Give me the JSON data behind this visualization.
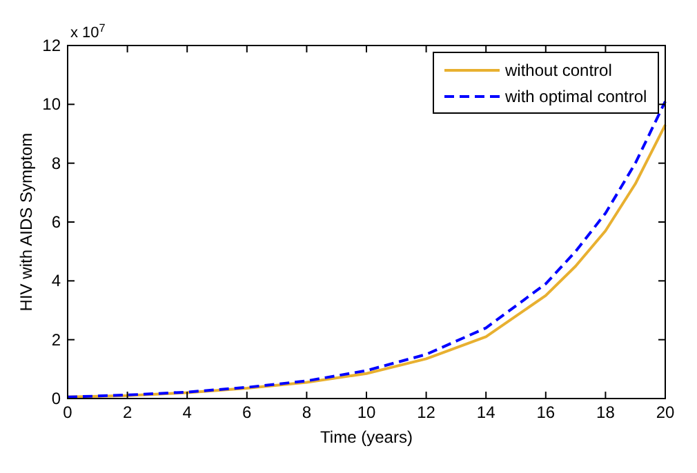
{
  "chart_data": {
    "type": "line",
    "xlabel": "Time (years)",
    "ylabel": "HIV with AIDS Symptom",
    "annotations": [
      "x 10$^{7}$"
    ],
    "x": [
      0,
      2,
      4,
      6,
      8,
      10,
      12,
      14,
      16,
      17,
      18,
      19,
      20
    ],
    "series": [
      {
        "name": "without control",
        "color": "#e8b030",
        "line_style": "solid",
        "values": [
          0.05,
          0.1,
          0.2,
          0.35,
          0.55,
          0.85,
          1.35,
          2.1,
          3.5,
          4.5,
          5.7,
          7.3,
          9.3
        ]
      },
      {
        "name": "with optimal control",
        "color": "#0000ff",
        "line_style": "dashed",
        "values": [
          0.05,
          0.12,
          0.22,
          0.38,
          0.6,
          0.95,
          1.5,
          2.4,
          3.9,
          5.0,
          6.3,
          8.0,
          10.1
        ]
      }
    ],
    "xlim": [
      0,
      20
    ],
    "xticks": [
      0,
      2,
      4,
      6,
      8,
      10,
      12,
      14,
      16,
      18,
      20
    ],
    "ylim": [
      0,
      12
    ],
    "yticks": [
      0,
      2,
      4,
      6,
      8,
      10,
      12
    ],
    "grid": false,
    "legend": "top right",
    "marker": "none"
  }
}
